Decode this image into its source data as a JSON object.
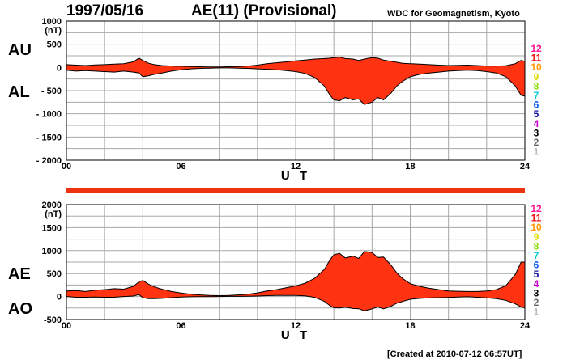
{
  "header": {
    "date": "1997/05/16",
    "title": "AE(11) (Provisional)",
    "source": "WDC for Geomagnetism, Kyoto",
    "created": "[Created at 2010-07-12 06:57UT]"
  },
  "colors": {
    "fill": "#ff3311",
    "line": "#000000",
    "grid": "#a8a8a8",
    "level_bar": "#ee3311"
  },
  "level_legend": [
    {
      "label": "12",
      "color": "#ff1493"
    },
    {
      "label": "11",
      "color": "#ee1111"
    },
    {
      "label": "10",
      "color": "#ff9900"
    },
    {
      "label": "9",
      "color": "#dddd00"
    },
    {
      "label": "8",
      "color": "#88dd00"
    },
    {
      "label": "7",
      "color": "#00cccc"
    },
    {
      "label": "6",
      "color": "#0055ff"
    },
    {
      "label": "5",
      "color": "#1111aa"
    },
    {
      "label": "4",
      "color": "#cc00cc"
    },
    {
      "label": "3",
      "color": "#000000"
    },
    {
      "label": "2",
      "color": "#666666"
    },
    {
      "label": "1",
      "color": "#bbbbbb"
    }
  ],
  "chart_data": [
    {
      "type": "area",
      "name": "AU/AL",
      "upper_label": "AU",
      "lower_label": "AL",
      "unit_label": "(nT)",
      "xlabel": "U T",
      "xlim": [
        0,
        24
      ],
      "ylim": [
        -2000,
        1000
      ],
      "x_ticks": [
        "00",
        "06",
        "12",
        "18",
        "24"
      ],
      "y_ticks": [
        "1000",
        "500",
        "0",
        "- 500",
        "- 1000",
        "- 1500",
        "- 2000"
      ],
      "x": [
        0,
        0.5,
        1,
        1.5,
        2,
        2.5,
        3,
        3.5,
        3.8,
        4,
        4.3,
        4.6,
        5,
        5.5,
        6,
        6.5,
        7,
        7.5,
        8,
        8.5,
        9,
        9.5,
        10,
        10.5,
        11,
        11.5,
        12,
        12.5,
        13,
        13.5,
        13.8,
        14,
        14.3,
        14.6,
        15,
        15.3,
        15.6,
        16,
        16.3,
        16.6,
        17,
        17.3,
        17.6,
        18,
        18.5,
        19,
        19.5,
        20,
        20.5,
        21,
        21.5,
        22,
        22.5,
        23,
        23.5,
        23.8,
        24
      ],
      "series": [
        {
          "name": "AU",
          "values": [
            60,
            50,
            40,
            55,
            60,
            70,
            80,
            120,
            200,
            150,
            90,
            60,
            40,
            30,
            25,
            20,
            15,
            10,
            10,
            15,
            20,
            30,
            50,
            80,
            100,
            120,
            140,
            160,
            180,
            190,
            200,
            210,
            220,
            190,
            180,
            150,
            180,
            210,
            200,
            160,
            130,
            110,
            90,
            80,
            70,
            60,
            50,
            40,
            45,
            50,
            40,
            30,
            30,
            35,
            80,
            150,
            130
          ]
        },
        {
          "name": "AL",
          "values": [
            -60,
            -80,
            -70,
            -80,
            -90,
            -100,
            -80,
            -100,
            -120,
            -200,
            -180,
            -150,
            -120,
            -80,
            -50,
            -30,
            -20,
            -15,
            -10,
            -10,
            -15,
            -20,
            -30,
            -40,
            -50,
            -70,
            -90,
            -130,
            -220,
            -400,
            -600,
            -700,
            -720,
            -650,
            -700,
            -680,
            -800,
            -750,
            -650,
            -700,
            -550,
            -400,
            -300,
            -200,
            -150,
            -120,
            -100,
            -80,
            -70,
            -60,
            -70,
            -90,
            -120,
            -200,
            -400,
            -600,
            -620
          ]
        }
      ]
    },
    {
      "type": "area",
      "name": "AE/AO",
      "upper_label": "AE",
      "lower_label": "AO",
      "unit_label": "(nT)",
      "xlabel": "U T",
      "xlim": [
        0,
        24
      ],
      "ylim": [
        -500,
        2000
      ],
      "x_ticks": [
        "00",
        "06",
        "12",
        "18",
        "24"
      ],
      "y_ticks": [
        "2000",
        "1500",
        "1000",
        "500",
        "0",
        "-500"
      ],
      "x": [
        0,
        0.5,
        1,
        1.5,
        2,
        2.5,
        3,
        3.5,
        3.8,
        4,
        4.3,
        4.6,
        5,
        5.5,
        6,
        6.5,
        7,
        7.5,
        8,
        8.5,
        9,
        9.5,
        10,
        10.5,
        11,
        11.5,
        12,
        12.5,
        13,
        13.5,
        13.8,
        14,
        14.3,
        14.6,
        15,
        15.3,
        15.6,
        16,
        16.3,
        16.6,
        17,
        17.3,
        17.6,
        18,
        18.5,
        19,
        19.5,
        20,
        20.5,
        21,
        21.5,
        22,
        22.5,
        23,
        23.5,
        23.8,
        24
      ],
      "series": [
        {
          "name": "AE",
          "values": [
            120,
            130,
            110,
            135,
            150,
            170,
            160,
            220,
            320,
            350,
            270,
            210,
            160,
            110,
            75,
            50,
            35,
            25,
            20,
            25,
            35,
            50,
            80,
            120,
            150,
            190,
            230,
            290,
            400,
            590,
            800,
            910,
            940,
            840,
            880,
            830,
            980,
            960,
            850,
            860,
            680,
            510,
            390,
            280,
            220,
            180,
            150,
            120,
            115,
            110,
            110,
            120,
            150,
            235,
            480,
            750,
            750
          ]
        },
        {
          "name": "AO",
          "values": [
            0,
            -15,
            -15,
            -12,
            -15,
            -15,
            0,
            10,
            40,
            -25,
            -45,
            -45,
            -40,
            -25,
            -12,
            -5,
            -3,
            -3,
            0,
            3,
            3,
            5,
            10,
            20,
            25,
            25,
            25,
            15,
            -20,
            -105,
            -200,
            -245,
            -250,
            -230,
            -260,
            -265,
            -310,
            -270,
            -225,
            -270,
            -210,
            -145,
            -105,
            -60,
            -40,
            -30,
            -25,
            -20,
            -12,
            -5,
            -15,
            -30,
            -45,
            -82,
            -160,
            -225,
            -245
          ]
        }
      ]
    }
  ]
}
